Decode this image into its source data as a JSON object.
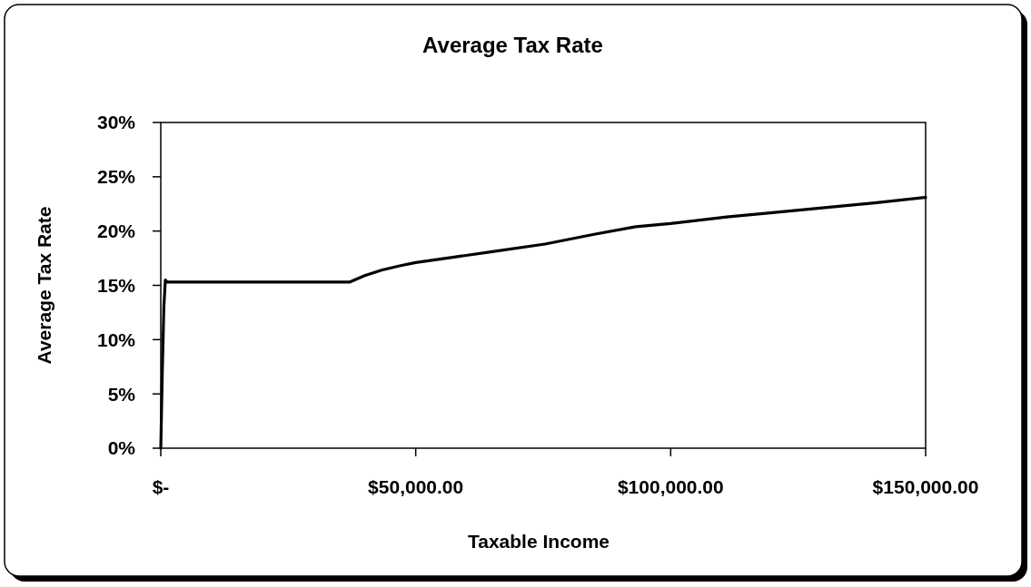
{
  "chart_data": {
    "type": "line",
    "title": "Average Tax Rate",
    "xlabel": "Taxable Income",
    "ylabel": "Average Tax Rate",
    "x": [
      0,
      300,
      600,
      900,
      1200,
      10000,
      20000,
      30000,
      37000,
      40000,
      43300,
      46850,
      50000,
      57540,
      65000,
      75360,
      85000,
      93170,
      100000,
      110990,
      120000,
      128800,
      140000,
      150000
    ],
    "series": [
      {
        "color": "#000000",
        "values": [
          0,
          7,
          13,
          15.5,
          15.3,
          15.3,
          15.3,
          15.3,
          15.3,
          15.9,
          16.4,
          16.8,
          17.1,
          17.6,
          18.1,
          18.8,
          19.7,
          20.4,
          20.7,
          21.3,
          21.7,
          22.1,
          22.6,
          23.1
        ]
      }
    ],
    "xlim": [
      0,
      150000
    ],
    "xticks": [
      {
        "value": 0,
        "label": "$-"
      },
      {
        "value": 50000,
        "label": "$50,000.00"
      },
      {
        "value": 100000,
        "label": "$100,000.00"
      },
      {
        "value": 150000,
        "label": "$150,000.00"
      }
    ],
    "ylim": [
      0,
      30
    ],
    "yticks": [
      {
        "value": 0,
        "label": "0%"
      },
      {
        "value": 5,
        "label": "5%"
      },
      {
        "value": 10,
        "label": "10%"
      },
      {
        "value": 15,
        "label": "15%"
      },
      {
        "value": 20,
        "label": "20%"
      },
      {
        "value": 25,
        "label": "25%"
      },
      {
        "value": 30,
        "label": "30%"
      }
    ],
    "grid": false,
    "marker": "none",
    "line_style": "solid"
  }
}
